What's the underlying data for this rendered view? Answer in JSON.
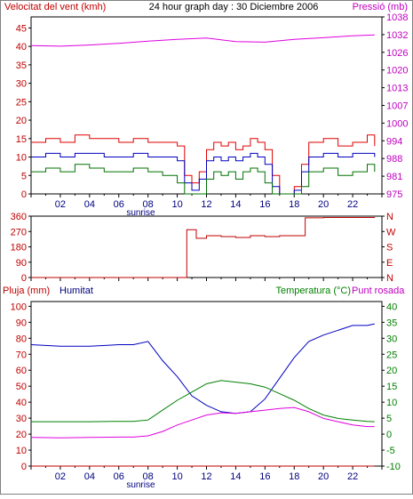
{
  "chart_data": [
    {
      "type": "line",
      "title": "24 hour graph day : 30 Diciembre 2006",
      "left_axis_label": "Velocitat del vent (kmh)",
      "right_axis_label": "Pressió (mb)",
      "left_ticks": [
        "0",
        "5",
        "10",
        "15",
        "20",
        "25",
        "30",
        "35",
        "40",
        "45"
      ],
      "right_ticks": [
        "975",
        "981",
        "988",
        "994",
        "1000",
        "1007",
        "1013",
        "1020",
        "1026",
        "1032",
        "1038"
      ],
      "x_ticks": [
        "02",
        "04",
        "06",
        "08",
        "10",
        "12",
        "14",
        "16",
        "18",
        "20",
        "22"
      ],
      "x_label": "sunrise",
      "ylim": [
        0,
        48
      ],
      "right_ylim": [
        975,
        1038
      ],
      "series": [
        {
          "role": "gust",
          "color": "#e00000",
          "x": [
            0,
            1,
            2,
            3,
            4,
            5,
            6,
            7,
            8,
            9,
            10,
            10.5,
            11,
            11.5,
            12,
            12.5,
            13,
            13.5,
            14,
            14.5,
            15,
            15.5,
            16,
            16.5,
            17,
            17.5,
            18,
            18.5,
            19,
            20,
            21,
            22,
            23,
            23.5
          ],
          "y": [
            14,
            15,
            14,
            16,
            15,
            15,
            14,
            15,
            14,
            14,
            13,
            5,
            3,
            6,
            12,
            14,
            13,
            14,
            12,
            13,
            15,
            14,
            12,
            5,
            0,
            0,
            2,
            8,
            14,
            15,
            13,
            14,
            16,
            13
          ]
        },
        {
          "role": "average",
          "color": "#0000c0",
          "x": [
            0,
            1,
            2,
            3,
            4,
            5,
            6,
            7,
            8,
            9,
            10,
            10.5,
            11,
            11.5,
            12,
            12.5,
            13,
            13.5,
            14,
            14.5,
            15,
            15.5,
            16,
            16.5,
            17,
            17.5,
            18,
            18.5,
            19,
            20,
            21,
            22,
            23,
            23.5
          ],
          "y": [
            10,
            11,
            10,
            11,
            11,
            10,
            10,
            11,
            10,
            10,
            9,
            3,
            1,
            4,
            9,
            10,
            9,
            10,
            9,
            10,
            11,
            10,
            8,
            2,
            0,
            0,
            1,
            6,
            10,
            11,
            10,
            11,
            11,
            10
          ]
        },
        {
          "role": "minimum",
          "color": "#007000",
          "x": [
            0,
            1,
            2,
            3,
            4,
            5,
            6,
            7,
            8,
            9,
            10,
            10.5,
            11,
            11.5,
            12,
            12.5,
            13,
            13.5,
            14,
            14.5,
            15,
            15.5,
            16,
            16.5,
            17,
            17.5,
            18,
            18.5,
            19,
            20,
            21,
            22,
            23,
            23.5
          ],
          "y": [
            6,
            7,
            6,
            8,
            7,
            6,
            6,
            7,
            6,
            5,
            3,
            0,
            0,
            0,
            4,
            6,
            5,
            6,
            4,
            6,
            7,
            6,
            3,
            0,
            0,
            0,
            0,
            2,
            6,
            7,
            5,
            6,
            8,
            6
          ]
        },
        {
          "name": "Pressió (mb)",
          "color": "#e000e0",
          "x": [
            0,
            2,
            4,
            6,
            8,
            10,
            12,
            14,
            16,
            18,
            20,
            22,
            23.5
          ],
          "y": [
            1027.8,
            1027.6,
            1028.0,
            1028.6,
            1029.4,
            1030.0,
            1030.5,
            1029.2,
            1029.0,
            1030.0,
            1030.6,
            1031.3,
            1031.6
          ]
        }
      ]
    },
    {
      "type": "line",
      "title": "",
      "left_ticks": [
        "0",
        "90",
        "180",
        "270",
        "360"
      ],
      "right_ticks": [
        "N",
        "E",
        "S",
        "W",
        "N"
      ],
      "ylim": [
        0,
        360
      ],
      "series": [
        {
          "name": "Direcció",
          "color": "#c00000",
          "x": [
            0,
            10.6,
            10.65,
            11.3,
            12,
            13,
            14,
            15,
            16,
            17,
            18,
            18.7,
            18.75,
            20,
            22,
            23.5
          ],
          "y": [
            0,
            0,
            280,
            230,
            245,
            240,
            235,
            245,
            240,
            245,
            245,
            245,
            350,
            352,
            352,
            350
          ]
        }
      ]
    },
    {
      "type": "line",
      "title": "",
      "left_axis_label": "Pluja (mm)",
      "left_axis_label2": "Humitat",
      "right_axis_label": "Temperatura (°C)",
      "right_axis_label2": "Punt rosada",
      "left_ticks": [
        "0",
        "10",
        "20",
        "30",
        "40",
        "50",
        "60",
        "70",
        "80",
        "90",
        "100"
      ],
      "right_ticks": [
        "-10",
        "-5",
        "0",
        "5",
        "10",
        "15",
        "20",
        "25",
        "30",
        "35",
        "40"
      ],
      "x_ticks": [
        "02",
        "04",
        "06",
        "08",
        "10",
        "12",
        "14",
        "16",
        "18",
        "20",
        "22"
      ],
      "x_label": "sunrise",
      "ylim": [
        0,
        103
      ],
      "right_ylim": [
        -10,
        40
      ],
      "series": [
        {
          "name": "Pluja (mm)",
          "color": "#c00000",
          "x": [
            0,
            23.5
          ],
          "y": [
            0,
            0
          ]
        },
        {
          "name": "Humitat",
          "color": "#0000c0",
          "x": [
            0,
            2,
            4,
            6,
            7,
            8,
            8.5,
            9,
            10,
            11,
            12,
            13,
            14,
            15,
            16,
            17,
            18,
            19,
            20,
            21,
            22,
            23,
            23.5
          ],
          "y": [
            76,
            75,
            75,
            76,
            76,
            78,
            72,
            66,
            56,
            44,
            38,
            34,
            33,
            34,
            42,
            55,
            68,
            78,
            82,
            85,
            88,
            88,
            89
          ]
        },
        {
          "name": "Temperatura (°C)",
          "color": "#008000",
          "x": [
            0,
            2,
            4,
            6,
            7,
            8,
            9,
            10,
            11,
            12,
            13,
            14,
            15,
            16,
            17,
            18,
            19,
            20,
            21,
            22,
            23,
            23.5
          ],
          "y": [
            3.5,
            3.5,
            3.5,
            3.6,
            3.6,
            4,
            7,
            10,
            12.5,
            15,
            16,
            15.5,
            15,
            14,
            12,
            10,
            7.5,
            5.5,
            4.5,
            4,
            3.6,
            3.5
          ]
        },
        {
          "name": "Punt rosada",
          "color": "#e000e0",
          "x": [
            0,
            2,
            4,
            6,
            7,
            8,
            9,
            10,
            11,
            12,
            13,
            14,
            15,
            16,
            17,
            18,
            19,
            20,
            21,
            22,
            23,
            23.5
          ],
          "y": [
            -1.3,
            -1.4,
            -1.3,
            -1.2,
            -1.2,
            -0.8,
            0.5,
            2.5,
            4,
            5.5,
            6.2,
            6,
            6.5,
            7,
            7.5,
            7.8,
            6.5,
            4.5,
            3.5,
            2.5,
            2,
            2
          ]
        }
      ]
    }
  ]
}
